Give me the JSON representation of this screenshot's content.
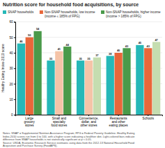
{
  "chart_data": {
    "type": "bar",
    "title": "Nutrition score for household food acquisitions, by source",
    "ylabel": "Healthy Eating Index-2010 score",
    "categories": [
      "Large\ngrocery\nstores",
      "Small and\nspecialty\nfood stores",
      "Convenience,\ndollar, and\nother stores",
      "Restaurants\nand other\neating places",
      "Schools"
    ],
    "series": [
      {
        "name": "SNAP households",
        "color": "#26b8b8",
        "colors": [
          "#26b8b8",
          "#26b8b8",
          "#26b8b8",
          "#26b8b8",
          "#26b8b8"
        ],
        "values": [
          46,
          35,
          35,
          38,
          45
        ]
      },
      {
        "name": "Non-SNAP households, low income\n(income ≤ 185% of FPG)",
        "color": "#e8673a",
        "colors": [
          "#e8673a",
          "#f5c4a8",
          "#f5c4a8",
          "#e8673a",
          "#e8673a"
        ],
        "values": [
          50,
          41,
          35,
          40,
          43
        ]
      },
      {
        "name": "Non-SNAP households, higher income\n(income > 185% of FPG)",
        "color": "#4a9a4a",
        "colors": [
          "#4a9a4a",
          "#4a9a4a",
          "#c5ddb0",
          "#4a9a4a",
          "#c5ddb0"
        ],
        "values": [
          54,
          44,
          37,
          43,
          47
        ]
      }
    ],
    "ylim": [
      0,
      60
    ],
    "yticks": [
      0,
      10,
      20,
      30,
      40,
      50,
      60
    ],
    "grid": true,
    "legend": "top",
    "data_labels": true,
    "annotations": [
      "Notes: SNAP = Supplemental Nutrition Assistance Program; FPG = Federal Poverty Guideline. Healthy Eating\nIndex-2010 scores run from 0 to 100, with a higher score indicating a healthier diet. Light-colored bars indicate\ndifference from SNAP households is not statistically significant at p < 0.05.\nSource: USDA, Economic Research Service estimates using data from the 2012-13 National Household Food\nAcquisition and Purchase Survey (FoodAPS)."
    ]
  }
}
